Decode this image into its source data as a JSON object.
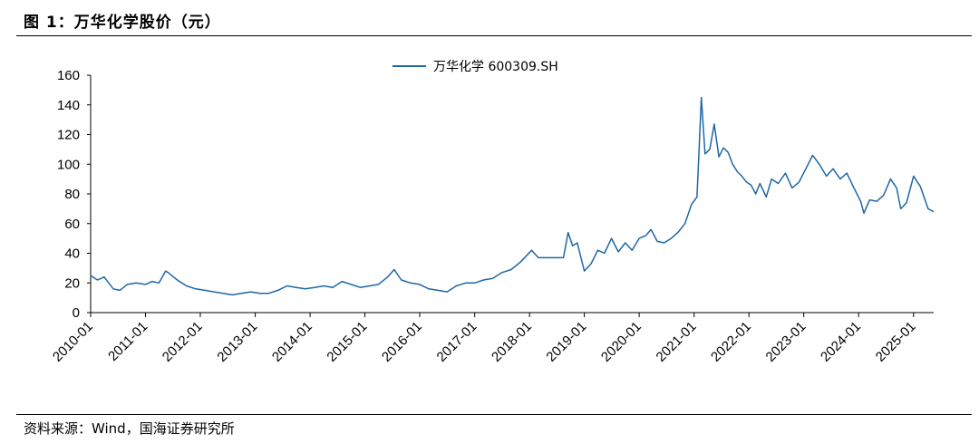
{
  "figure": {
    "title": "图 1：万华化学股价（元）",
    "source": "资料来源：Wind，国海证券研究所"
  },
  "chart_data": {
    "type": "line",
    "legend": "top-center",
    "grid": false,
    "ylim": [
      0,
      160
    ],
    "yticks": [
      "0",
      "20",
      "40",
      "60",
      "80",
      "100",
      "120",
      "140",
      "160"
    ],
    "xticks": [
      "2010-01",
      "2011-01",
      "2012-01",
      "2013-01",
      "2014-01",
      "2015-01",
      "2016-01",
      "2017-01",
      "2018-01",
      "2019-01",
      "2020-01",
      "2021-01",
      "2022-01",
      "2023-01",
      "2024-01",
      "2025-01"
    ],
    "xlim": [
      "2010-01-01",
      "2025-05-15"
    ],
    "series": [
      {
        "name": "万华化学 600309.SH",
        "color": "#1f67a6",
        "x": [
          "2010-01-01",
          "2010-02-15",
          "2010-04-01",
          "2010-06-01",
          "2010-07-15",
          "2010-09-01",
          "2010-11-01",
          "2011-01-01",
          "2011-02-15",
          "2011-04-01",
          "2011-05-15",
          "2011-06-01",
          "2011-08-01",
          "2011-10-01",
          "2011-12-01",
          "2012-02-01",
          "2012-04-01",
          "2012-06-01",
          "2012-08-01",
          "2012-10-01",
          "2012-12-01",
          "2013-02-01",
          "2013-04-01",
          "2013-06-01",
          "2013-08-01",
          "2013-10-01",
          "2013-12-01",
          "2014-02-01",
          "2014-04-01",
          "2014-06-01",
          "2014-08-01",
          "2014-10-01",
          "2014-12-01",
          "2015-02-01",
          "2015-04-01",
          "2015-06-01",
          "2015-07-15",
          "2015-09-01",
          "2015-11-01",
          "2016-01-01",
          "2016-03-01",
          "2016-05-01",
          "2016-07-01",
          "2016-09-01",
          "2016-11-01",
          "2017-01-01",
          "2017-03-01",
          "2017-05-01",
          "2017-07-01",
          "2017-09-01",
          "2017-11-01",
          "2018-01-15",
          "2018-03-01",
          "2018-05-01",
          "2018-07-01",
          "2018-08-15",
          "2018-09-15",
          "2018-10-15",
          "2018-11-15",
          "2019-01-01",
          "2019-02-15",
          "2019-04-01",
          "2019-05-15",
          "2019-07-01",
          "2019-08-15",
          "2019-10-01",
          "2019-11-15",
          "2020-01-01",
          "2020-02-15",
          "2020-03-20",
          "2020-05-01",
          "2020-06-15",
          "2020-08-01",
          "2020-09-15",
          "2020-11-01",
          "2020-12-15",
          "2021-01-20",
          "2021-02-18",
          "2021-03-15",
          "2021-04-15",
          "2021-05-15",
          "2021-06-15",
          "2021-07-15",
          "2021-08-15",
          "2021-09-15",
          "2021-10-15",
          "2021-11-15",
          "2021-12-15",
          "2022-01-15",
          "2022-02-15",
          "2022-03-15",
          "2022-04-26",
          "2022-06-01",
          "2022-07-15",
          "2022-09-01",
          "2022-10-15",
          "2022-12-01",
          "2023-01-15",
          "2023-03-01",
          "2023-04-15",
          "2023-06-01",
          "2023-07-15",
          "2023-09-01",
          "2023-10-15",
          "2023-12-01",
          "2024-01-15",
          "2024-02-05",
          "2024-03-15",
          "2024-05-01",
          "2024-06-15",
          "2024-08-01",
          "2024-09-10",
          "2024-10-08",
          "2024-11-15",
          "2025-01-01",
          "2025-02-15",
          "2025-04-08",
          "2025-05-15"
        ],
        "values": [
          25,
          22,
          24,
          16,
          15,
          19,
          20,
          19,
          21,
          20,
          28,
          27,
          22,
          18,
          16,
          15,
          14,
          13,
          12,
          13,
          14,
          13,
          13,
          15,
          18,
          17,
          16,
          17,
          18,
          17,
          21,
          19,
          17,
          18,
          19,
          24,
          29,
          22,
          20,
          19,
          16,
          15,
          14,
          18,
          20,
          20,
          22,
          23,
          27,
          29,
          34,
          42,
          37,
          37,
          37,
          37,
          54,
          45,
          47,
          28,
          33,
          42,
          40,
          50,
          41,
          47,
          42,
          50,
          52,
          56,
          48,
          47,
          50,
          54,
          60,
          73,
          78,
          145,
          107,
          110,
          127,
          105,
          111,
          108,
          100,
          95,
          92,
          88,
          86,
          80,
          87,
          78,
          90,
          87,
          94,
          84,
          88,
          97,
          106,
          100,
          92,
          97,
          90,
          94,
          84,
          75,
          67,
          76,
          75,
          79,
          90,
          84,
          70,
          74,
          92,
          85,
          70,
          68
        ]
      }
    ]
  }
}
